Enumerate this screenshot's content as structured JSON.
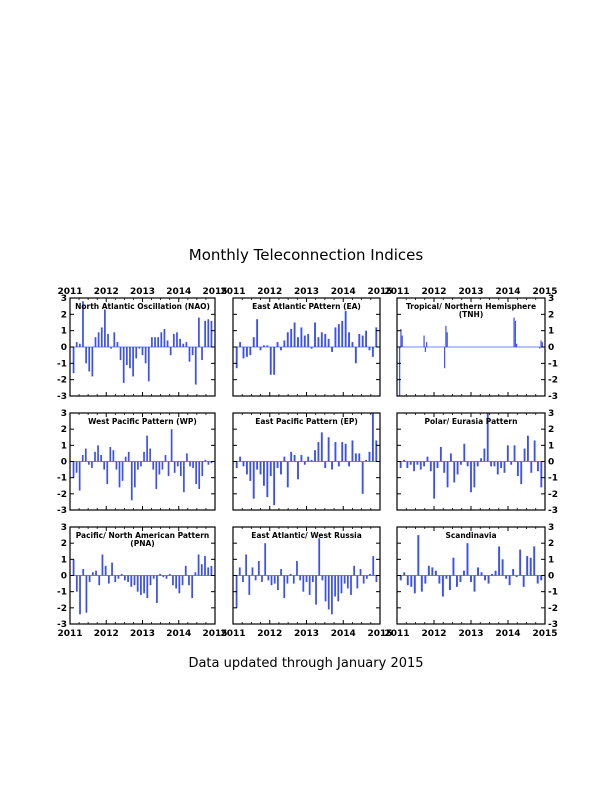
{
  "chart_data": {
    "type": "bar",
    "title": "Monthly Teleconnection Indices",
    "footer": "Data updated through January 2015",
    "bar_color": "#3b50f0",
    "start_year": 2011,
    "x_tick_labels": [
      "2011",
      "2012",
      "2013",
      "2014",
      "2015"
    ],
    "y_tick_labels": [
      "-3",
      "-2",
      "-1",
      "0",
      "1",
      "2",
      "3"
    ],
    "ylim": [
      -3,
      3
    ],
    "panels": [
      {
        "name": "North Atlantic Oscillation (NAO)",
        "values": [
          -1.6,
          0.3,
          0.2,
          2.8,
          -1.0,
          -1.5,
          -1.8,
          0.6,
          0.9,
          1.2,
          2.3,
          0.8,
          -0.1,
          0.9,
          0.3,
          -0.8,
          -2.2,
          -1.1,
          -1.3,
          -1.8,
          -0.7,
          -0.1,
          -0.5,
          -1.0,
          -2.1,
          0.6,
          0.6,
          0.6,
          0.9,
          1.1,
          0.4,
          -0.5,
          0.8,
          0.9,
          0.5,
          0.2,
          0.3,
          -0.9,
          -0.5,
          -2.3,
          1.8,
          -0.8,
          1.6,
          1.7,
          1.6
        ]
      },
      {
        "name": "East Atlantic PAttern (EA)",
        "values": [
          -1.3,
          0.3,
          -0.7,
          -0.6,
          -0.5,
          0.6,
          1.7,
          -0.2,
          0.1,
          0.1,
          -1.7,
          -1.7,
          0.3,
          -0.2,
          0.4,
          0.9,
          1.1,
          1.5,
          0.6,
          1.2,
          0.7,
          0.8,
          -0.1,
          1.5,
          0.6,
          0.9,
          0.8,
          0.5,
          -0.3,
          1.2,
          1.4,
          1.6,
          2.2,
          0.9,
          0.3,
          -1.0,
          0.8,
          0.7,
          1.0,
          -0.2,
          -0.6,
          1.2
        ]
      },
      {
        "name": "Tropical/ Northern Hemisphere\n(TNH)",
        "values": [
          -3.0,
          1.1,
          0.7,
          0,
          0,
          0,
          0,
          0,
          0,
          0,
          0,
          0,
          0,
          0,
          0,
          0,
          0,
          0,
          0,
          0.7,
          -0.3,
          0.3,
          0,
          0,
          0,
          0,
          0,
          0,
          0,
          0,
          0,
          0,
          0,
          0,
          0,
          -1.3,
          1.3,
          0.9,
          0,
          0,
          0,
          0,
          0,
          0,
          0,
          0,
          0,
          0,
          0,
          0,
          0,
          0,
          0,
          0,
          0,
          0,
          0,
          0,
          0,
          0,
          0,
          0,
          0,
          0,
          0,
          0,
          0,
          0,
          0,
          0,
          0,
          0,
          0,
          0,
          0,
          0,
          0,
          0,
          0,
          0,
          0,
          0,
          0,
          0,
          0,
          0,
          0,
          0,
          0,
          1.8,
          1.6,
          0.2,
          0,
          0,
          0,
          0,
          0,
          0,
          0,
          0,
          0,
          0,
          0,
          0,
          0,
          0,
          0,
          0,
          0,
          -0.1,
          0.4,
          0.3
        ]
      },
      {
        "name": "West Pacific Pattern (WP)",
        "values": [
          -1.0,
          -0.7,
          -1.8,
          0.4,
          0.8,
          -0.2,
          -0.4,
          0.6,
          1.0,
          0.4,
          -0.5,
          -1.4,
          0.9,
          0.7,
          -0.5,
          -1.6,
          -1.2,
          0.3,
          0.6,
          -2.4,
          -1.6,
          -0.5,
          -0.3,
          0.6,
          1.6,
          0.8,
          -0.5,
          -1.7,
          -0.8,
          -0.5,
          0.4,
          -0.9,
          2.0,
          -0.7,
          -0.3,
          -0.9,
          -1.9,
          0.5,
          -0.3,
          -0.4,
          -1.4,
          -1.7,
          -0.9,
          0.1,
          -0.2,
          -0.1
        ]
      },
      {
        "name": "East Pacific Pattern (EP)",
        "values": [
          -0.4,
          0.3,
          -0.3,
          -0.8,
          -1.2,
          -2.3,
          -0.5,
          -0.8,
          -1.5,
          -2.2,
          -0.9,
          -2.7,
          -0.4,
          -0.8,
          0.3,
          -1.6,
          0.6,
          0.4,
          -1.1,
          0.4,
          -0.2,
          0.3,
          0.1,
          0.7,
          1.2,
          1.8,
          -0.4,
          1.5,
          -0.5,
          1.2,
          -0.3,
          1.2,
          1.1,
          -0.3,
          1.3,
          0.5,
          0.5,
          -2.0,
          0.1,
          0.6,
          3.0,
          1.3
        ]
      },
      {
        "name": "Polar/ Eurasia Pattern",
        "values": [
          -0.4,
          0.1,
          -0.4,
          -0.2,
          -0.6,
          -0.2,
          -0.5,
          -0.3,
          0.3,
          -0.6,
          -2.3,
          -0.4,
          0.9,
          -0.7,
          -1.6,
          0.5,
          -1.3,
          -0.8,
          -0.2,
          1.1,
          -0.3,
          -1.9,
          -1.6,
          -0.3,
          0.2,
          0.8,
          3.0,
          -0.3,
          -0.3,
          -0.8,
          -0.4,
          -0.7,
          1.0,
          -0.2,
          1.0,
          -0.9,
          -1.4,
          0.8,
          1.6,
          -0.7,
          1.3,
          -0.6,
          -1.6
        ]
      },
      {
        "name": "Pacific/ North American Pattern\n(PNA)",
        "values": [
          1.0,
          -1.0,
          -2.4,
          0.4,
          -2.3,
          -0.4,
          0.2,
          0.3,
          -0.6,
          1.3,
          0.6,
          -0.5,
          0.8,
          -0.4,
          -0.2,
          0.1,
          -0.3,
          -0.4,
          -0.7,
          -0.6,
          -1.0,
          -1.2,
          -1.1,
          -1.4,
          -0.6,
          -0.2,
          -1.7,
          0.1,
          -0.1,
          -0.2,
          0.1,
          -0.6,
          -0.8,
          -1.1,
          -0.6,
          0.6,
          -0.6,
          -1.4,
          0.2,
          1.3,
          0.7,
          1.2,
          0.5,
          0.6
        ]
      },
      {
        "name": "East Atlantic/ West Russia",
        "values": [
          -2.0,
          0.5,
          -0.4,
          1.3,
          -1.2,
          0.5,
          -0.3,
          0.9,
          -0.4,
          2.0,
          -0.3,
          -0.6,
          -0.5,
          -0.9,
          0.4,
          -1.4,
          -0.5,
          0.1,
          -0.5,
          0.9,
          -0.3,
          -1.0,
          -0.4,
          -1.2,
          -0.4,
          -1.8,
          2.3,
          -0.3,
          -1.6,
          -2.1,
          -2.4,
          -1.3,
          -1.6,
          -1.1,
          -0.5,
          -0.8,
          -1.2,
          0.6,
          -0.8,
          0.4,
          -0.5,
          -0.2,
          0.1,
          1.2,
          -0.4
        ]
      },
      {
        "name": "Scandinavia",
        "values": [
          -0.3,
          0.2,
          -0.6,
          -0.7,
          -1.1,
          2.5,
          -1.0,
          -0.5,
          0.6,
          0.5,
          0.3,
          -0.5,
          -1.3,
          -0.2,
          -0.9,
          1.1,
          -0.7,
          -0.4,
          0.3,
          2.0,
          -0.4,
          -1.0,
          0.5,
          0.2,
          -0.3,
          -0.5,
          0.1,
          0.3,
          1.8,
          1.0,
          -0.2,
          -0.6,
          0.4,
          -0.1,
          1.6,
          -0.7,
          1.2,
          1.1,
          1.8,
          -0.5,
          -0.3
        ]
      }
    ]
  }
}
